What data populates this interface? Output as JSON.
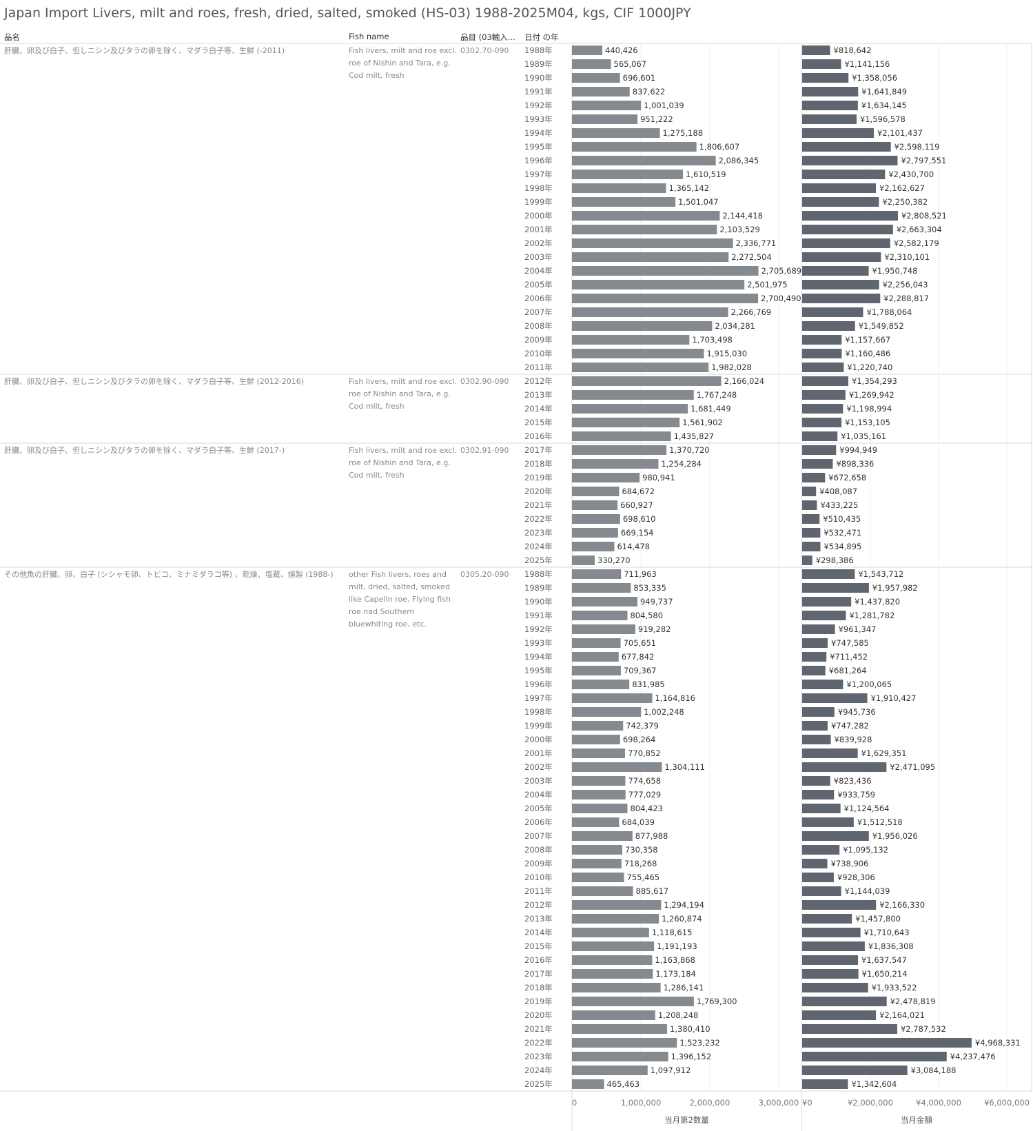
{
  "title": "Japan Import Livers, milt and roes, fresh, dried, salted, smoked (HS-03) 1988-2025M04, kgs, CIF 1000JPY",
  "headers": {
    "name_jp": "品名",
    "fish_name": "Fish name",
    "hs_code": "品目 (03輸入...",
    "year": "日付 の年"
  },
  "chart_data": {
    "type": "bar",
    "orientation": "horizontal",
    "axes": [
      {
        "title": "当月第2数量",
        "range": [
          0,
          3350000
        ],
        "ticks": [
          0,
          1000000,
          2000000,
          3000000
        ],
        "tick_labels": [
          "0",
          "1,000,000",
          "2,000,000",
          "3,000,000"
        ],
        "color": "#858a90"
      },
      {
        "title": "当月金額",
        "range": [
          0,
          6500000
        ],
        "ticks": [
          0,
          2000000,
          4000000,
          6000000
        ],
        "tick_labels": [
          "¥0",
          "¥2,000,000",
          "¥4,000,000",
          "¥6,000,000"
        ],
        "color": "#5f6670"
      }
    ],
    "groups": [
      {
        "name_jp": "肝臓、卵及び白子、但しニシン及びタラの卵を除く、マダラ白子等、生鮮 (-2011)",
        "fish_name": "Fish livers, milt and roe excl. roe of Nishin and Tara, e.g. Cod milt, fresh",
        "hs_code": "0302.70-090",
        "years": [
          "1988年",
          "1989年",
          "1990年",
          "1991年",
          "1992年",
          "1993年",
          "1994年",
          "1995年",
          "1996年",
          "1997年",
          "1998年",
          "1999年",
          "2000年",
          "2001年",
          "2002年",
          "2003年",
          "2004年",
          "2005年",
          "2006年",
          "2007年",
          "2008年",
          "2009年",
          "2010年",
          "2011年"
        ],
        "quantity": [
          440426,
          565067,
          696601,
          837622,
          1001039,
          951222,
          1275188,
          1806607,
          2086345,
          1610519,
          1365142,
          1501047,
          2144418,
          2103529,
          2336771,
          2272504,
          2705689,
          2501975,
          2700490,
          2266769,
          2034281,
          1703498,
          1915030,
          1982028
        ],
        "quantity_labels": [
          "440,426",
          "565,067",
          "696,601",
          "837,622",
          "1,001,039",
          "951,222",
          "1,275,188",
          "1,806,607",
          "2,086,345",
          "1,610,519",
          "1,365,142",
          "1,501,047",
          "2,144,418",
          "2,103,529",
          "2,336,771",
          "2,272,504",
          "2,705,689",
          "2,501,975",
          "2,700,490",
          "2,266,769",
          "2,034,281",
          "1,703,498",
          "1,915,030",
          "1,982,028"
        ],
        "value": [
          818642,
          1141156,
          1358056,
          1641849,
          1634145,
          1596578,
          2101437,
          2598119,
          2797551,
          2430700,
          2162627,
          2250382,
          2808521,
          2663304,
          2582179,
          2310101,
          1950748,
          2256043,
          2288817,
          1788064,
          1549852,
          1157667,
          1160486,
          1220740
        ],
        "value_labels": [
          "¥818,642",
          "¥1,141,156",
          "¥1,358,056",
          "¥1,641,849",
          "¥1,634,145",
          "¥1,596,578",
          "¥2,101,437",
          "¥2,598,119",
          "¥2,797,551",
          "¥2,430,700",
          "¥2,162,627",
          "¥2,250,382",
          "¥2,808,521",
          "¥2,663,304",
          "¥2,582,179",
          "¥2,310,101",
          "¥1,950,748",
          "¥2,256,043",
          "¥2,288,817",
          "¥1,788,064",
          "¥1,549,852",
          "¥1,157,667",
          "¥1,160,486",
          "¥1,220,740"
        ]
      },
      {
        "name_jp": "肝臓、卵及び白子、但しニシン及びタラの卵を除く、マダラ白子等、生鮮 (2012-2016)",
        "fish_name": "Fish livers, milt and roe excl. roe of Nishin and Tara, e.g. Cod milt, fresh",
        "hs_code": "0302.90-090",
        "years": [
          "2012年",
          "2013年",
          "2014年",
          "2015年",
          "2016年"
        ],
        "quantity": [
          2166024,
          1767248,
          1681449,
          1561902,
          1435827
        ],
        "quantity_labels": [
          "2,166,024",
          "1,767,248",
          "1,681,449",
          "1,561,902",
          "1,435,827"
        ],
        "value": [
          1354293,
          1269942,
          1198994,
          1153105,
          1035161
        ],
        "value_labels": [
          "¥1,354,293",
          "¥1,269,942",
          "¥1,198,994",
          "¥1,153,105",
          "¥1,035,161"
        ]
      },
      {
        "name_jp": "肝臓、卵及び白子、但しニシン及びタラの卵を除く、マダラ白子等、生鮮 (2017-)",
        "fish_name": "Fish livers, milt and roe excl. roe of Nishin and Tara, e.g. Cod milt, fresh",
        "hs_code": "0302.91-090",
        "years": [
          "2017年",
          "2018年",
          "2019年",
          "2020年",
          "2021年",
          "2022年",
          "2023年",
          "2024年",
          "2025年"
        ],
        "quantity": [
          1370720,
          1254284,
          980941,
          684672,
          660927,
          698610,
          669154,
          614478,
          330270
        ],
        "quantity_labels": [
          "1,370,720",
          "1,254,284",
          "980,941",
          "684,672",
          "660,927",
          "698,610",
          "669,154",
          "614,478",
          "330,270"
        ],
        "value": [
          994949,
          898336,
          672658,
          408087,
          433225,
          510435,
          532471,
          534895,
          298386
        ],
        "value_labels": [
          "¥994,949",
          "¥898,336",
          "¥672,658",
          "¥408,087",
          "¥433,225",
          "¥510,435",
          "¥532,471",
          "¥534,895",
          "¥298,386"
        ]
      },
      {
        "name_jp": "その他魚の肝臓、卵、白子 (シシャモ卵、トビコ、ミナミダラコ等) 、乾燥、塩蔵、燻製 (1988-)",
        "fish_name": "other Fish livers, roes and milt, dried, salted, smoked like Capelin roe, Flying fish roe nad Southern bluewhiting roe, etc.",
        "hs_code": "0305.20-090",
        "years": [
          "1988年",
          "1989年",
          "1990年",
          "1991年",
          "1992年",
          "1993年",
          "1994年",
          "1995年",
          "1996年",
          "1997年",
          "1998年",
          "1999年",
          "2000年",
          "2001年",
          "2002年",
          "2003年",
          "2004年",
          "2005年",
          "2006年",
          "2007年",
          "2008年",
          "2009年",
          "2010年",
          "2011年",
          "2012年",
          "2013年",
          "2014年",
          "2015年",
          "2016年",
          "2017年",
          "2018年",
          "2019年",
          "2020年",
          "2021年",
          "2022年",
          "2023年",
          "2024年",
          "2025年"
        ],
        "quantity": [
          711963,
          853335,
          949737,
          804580,
          919282,
          705651,
          677842,
          709367,
          831985,
          1164816,
          1002248,
          742379,
          698264,
          770852,
          1304111,
          774658,
          777029,
          804423,
          684039,
          877988,
          730358,
          718268,
          755465,
          885617,
          1294194,
          1260874,
          1118615,
          1191193,
          1163868,
          1173184,
          1286141,
          1769300,
          1208248,
          1380410,
          1523232,
          1396152,
          1097912,
          465463
        ],
        "quantity_labels": [
          "711,963",
          "853,335",
          "949,737",
          "804,580",
          "919,282",
          "705,651",
          "677,842",
          "709,367",
          "831,985",
          "1,164,816",
          "1,002,248",
          "742,379",
          "698,264",
          "770,852",
          "1,304,111",
          "774,658",
          "777,029",
          "804,423",
          "684,039",
          "877,988",
          "730,358",
          "718,268",
          "755,465",
          "885,617",
          "1,294,194",
          "1,260,874",
          "1,118,615",
          "1,191,193",
          "1,163,868",
          "1,173,184",
          "1,286,141",
          "1,769,300",
          "1,208,248",
          "1,380,410",
          "1,523,232",
          "1,396,152",
          "1,097,912",
          "465,463"
        ],
        "value": [
          1543712,
          1957982,
          1437820,
          1281782,
          961347,
          747585,
          711452,
          681264,
          1200065,
          1910427,
          945736,
          747282,
          839928,
          1629351,
          2471095,
          823436,
          933759,
          1124564,
          1512518,
          1956026,
          1095132,
          738906,
          928306,
          1144039,
          2166330,
          1457800,
          1710643,
          1836308,
          1637547,
          1650214,
          1933522,
          2478819,
          2164021,
          2787532,
          4968331,
          4237476,
          3084188,
          1342604
        ],
        "value_labels": [
          "¥1,543,712",
          "¥1,957,982",
          "¥1,437,820",
          "¥1,281,782",
          "¥961,347",
          "¥747,585",
          "¥711,452",
          "¥681,264",
          "¥1,200,065",
          "¥1,910,427",
          "¥945,736",
          "¥747,282",
          "¥839,928",
          "¥1,629,351",
          "¥2,471,095",
          "¥823,436",
          "¥933,759",
          "¥1,124,564",
          "¥1,512,518",
          "¥1,956,026",
          "¥1,095,132",
          "¥738,906",
          "¥928,306",
          "¥1,144,039",
          "¥2,166,330",
          "¥1,457,800",
          "¥1,710,643",
          "¥1,836,308",
          "¥1,637,547",
          "¥1,650,214",
          "¥1,933,522",
          "¥2,478,819",
          "¥2,164,021",
          "¥2,787,532",
          "¥4,968,331",
          "¥4,237,476",
          "¥3,084,188",
          "¥1,342,604"
        ]
      }
    ]
  }
}
